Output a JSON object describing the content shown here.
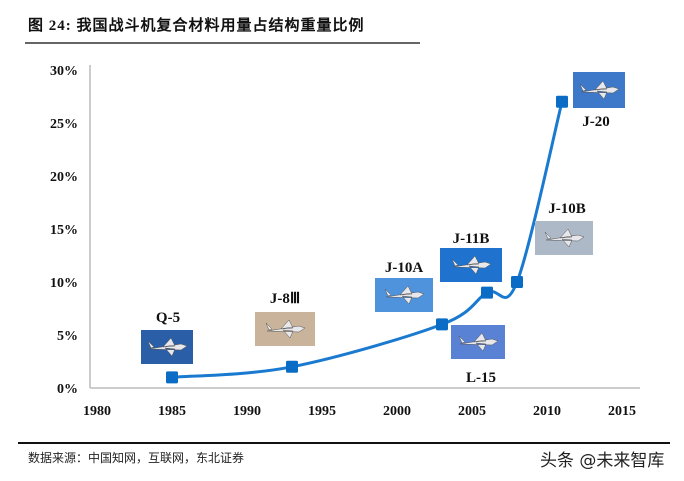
{
  "title": "图  24:  我国战斗机复合材料用量占结构重量比例",
  "source": "数据来源：中国知网，互联网，东北证券",
  "watermark": "头条 @未来智库",
  "chart_data": {
    "type": "line",
    "title": "",
    "xlabel": "",
    "ylabel": "",
    "xlim": [
      1980,
      2015
    ],
    "ylim": [
      0,
      30
    ],
    "x_ticks": [
      "1980",
      "1985",
      "1990",
      "1995",
      "2000",
      "2005",
      "2010",
      "2015"
    ],
    "y_ticks": [
      "0%",
      "5%",
      "10%",
      "15%",
      "20%",
      "25%",
      "30%"
    ],
    "grid": false,
    "line_color": "#1a7ad0",
    "marker_color": "#0a6cc4",
    "points": [
      {
        "x": 1985,
        "y": 1
      },
      {
        "x": 1993,
        "y": 2
      },
      {
        "x": 2003,
        "y": 6
      },
      {
        "x": 2006,
        "y": 9
      },
      {
        "x": 2008,
        "y": 10
      },
      {
        "x": 2011,
        "y": 27
      }
    ],
    "annotations": [
      {
        "label": "Q-5",
        "photo": "aircraft-photo-q5",
        "photo_color": "#2a5fa8"
      },
      {
        "label": "J-8Ⅲ",
        "photo": "aircraft-photo-j8iii",
        "photo_color": "#c9b39a"
      },
      {
        "label": "J-10A",
        "photo": "aircraft-photo-j10a",
        "photo_color": "#4f93dc"
      },
      {
        "label": "J-11B",
        "photo": "aircraft-photo-j11b",
        "photo_color": "#1f73cf"
      },
      {
        "label": "L-15",
        "photo": "aircraft-photo-l15",
        "photo_color": "#5a82d4"
      },
      {
        "label": "J-10B",
        "photo": "aircraft-photo-j10b",
        "photo_color": "#aeb9c8"
      },
      {
        "label": "J-20",
        "photo": "aircraft-photo-j20",
        "photo_color": "#3e78c8"
      }
    ]
  }
}
